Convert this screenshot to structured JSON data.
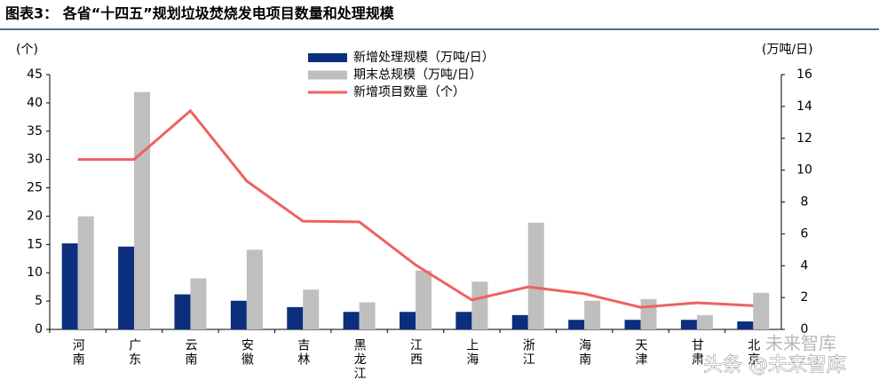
{
  "chart_data": {
    "type": "bar_line",
    "title": "图表3：  各省“十四五”规划垃圾焚烧发电项目数量和处理规模",
    "y_label": "(个)",
    "y2_label": "(万吨/日)",
    "categories": [
      "河南",
      "广东",
      "云南",
      "安徽",
      "吉林",
      "黑龙江",
      "江西",
      "上海",
      "浙江",
      "海南",
      "天津",
      "甘肃",
      "北京"
    ],
    "series": [
      {
        "name": "新增处理规模（万吨/日）",
        "color": "#0b2f7c",
        "kind": "bar",
        "axis": "y2",
        "values": [
          5.4,
          5.2,
          2.2,
          1.8,
          1.4,
          1.1,
          1.1,
          1.1,
          0.9,
          0.6,
          0.6,
          0.6,
          0.5
        ]
      },
      {
        "name": "期末总规模（万吨/日）",
        "color": "#bfbfbf",
        "kind": "bar",
        "axis": "y2",
        "values": [
          7.1,
          14.9,
          3.2,
          5.0,
          2.5,
          1.7,
          3.7,
          3.0,
          6.7,
          1.8,
          1.9,
          0.9,
          2.3
        ]
      },
      {
        "name": "新增项目数量（个）",
        "color": "#f06060",
        "kind": "line",
        "values": [
          30,
          30,
          38.6,
          26.2,
          19.1,
          19,
          11.4,
          5.2,
          7.5,
          6.3,
          3.9,
          4.7,
          4.2
        ]
      }
    ],
    "ylim": [
      0,
      45
    ],
    "yticks": [
      0,
      5,
      10,
      15,
      20,
      25,
      30,
      35,
      40,
      45
    ],
    "y2lim": [
      0,
      16
    ],
    "y2ticks": [
      0,
      2,
      4,
      6,
      8,
      10,
      12,
      14,
      16
    ],
    "watermark": "头条 @未来智库",
    "watermark_logo": "未来智库"
  }
}
